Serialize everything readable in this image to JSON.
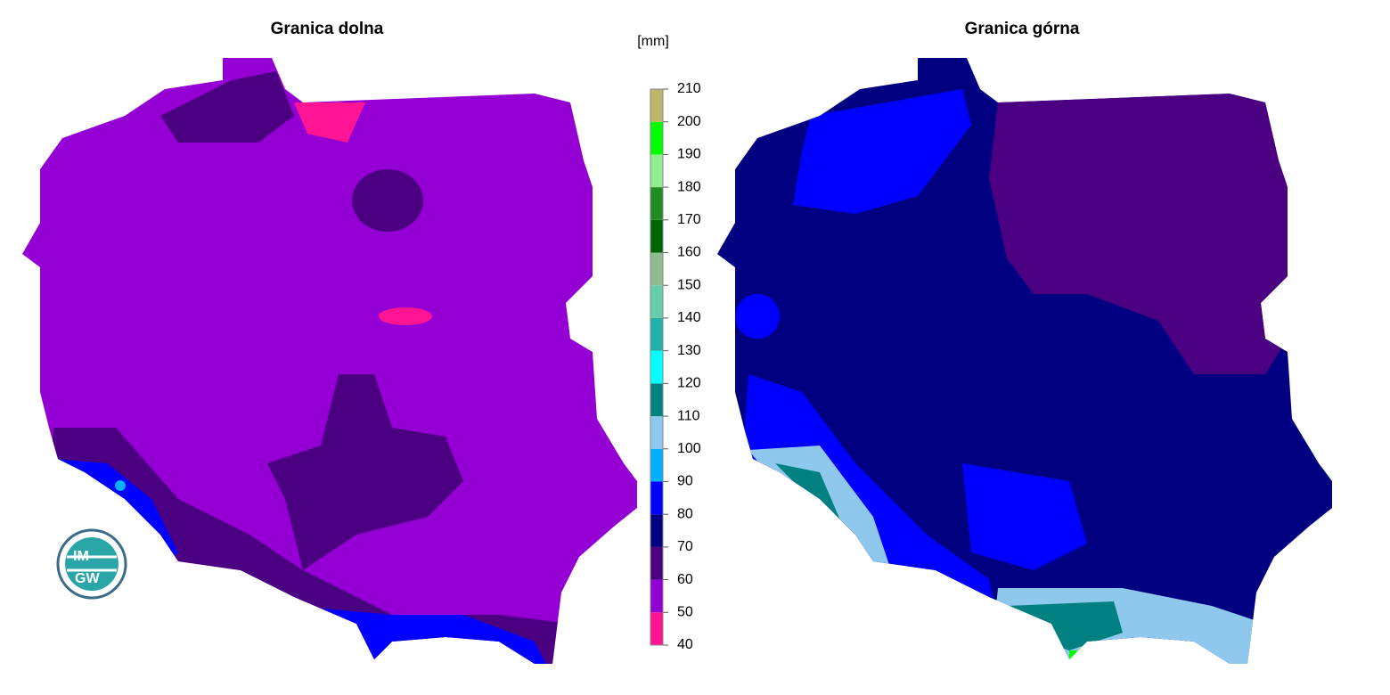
{
  "maps": [
    {
      "title": "Granica dolna"
    },
    {
      "title": "Granica górna"
    }
  ],
  "legend": {
    "unit": "[mm]",
    "ticks": [
      40,
      50,
      60,
      70,
      80,
      90,
      100,
      110,
      120,
      130,
      140,
      150,
      160,
      170,
      180,
      190,
      200,
      210
    ],
    "colors": [
      "#ff1493",
      "#9400d3",
      "#4b0082",
      "#000080",
      "#0000ff",
      "#00b0ff",
      "#8ec8ec",
      "#008080",
      "#00ffff",
      "#20b2aa",
      "#66cdaa",
      "#8fbc8f",
      "#006400",
      "#228b22",
      "#90ee90",
      "#00ff00",
      "#bdb76b"
    ]
  },
  "logo": {
    "top": "IM",
    "bottom": "GW"
  }
}
